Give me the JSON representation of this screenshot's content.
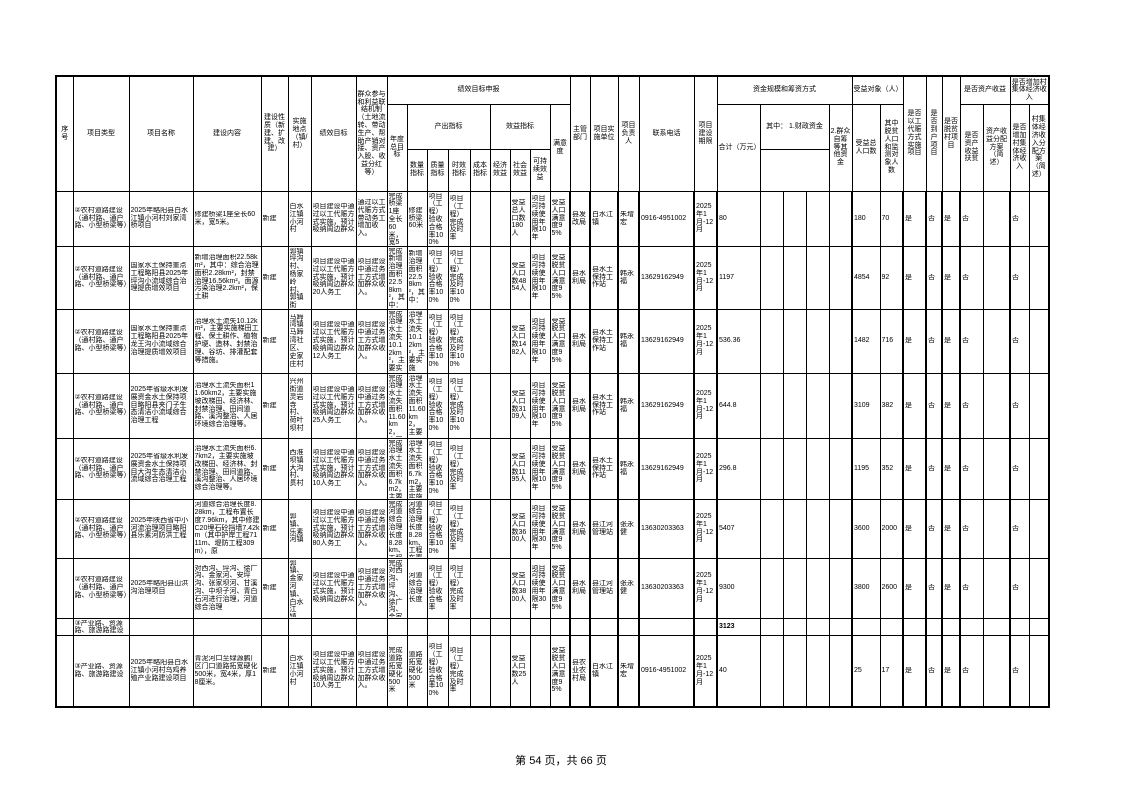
{
  "page": {
    "footer": "第 54 页，共 66 页",
    "colors": {
      "background": "#ffffff",
      "text": "#000000",
      "border": "#000000"
    }
  },
  "table": {
    "header_rows": [
      [
        {
          "t": "序号",
          "rs": 3
        },
        {
          "t": "项目类型",
          "rs": 3
        },
        {
          "t": "项目名称",
          "rs": 3
        },
        {
          "t": "建设内容",
          "rs": 3
        },
        {
          "t": "建设性质（新建、扩建、改建）",
          "rs": 3
        },
        {
          "t": "实施地点（镇/村）",
          "rs": 3
        },
        {
          "t": "绩效目标",
          "rs": 3
        },
        {
          "t": "群众参与和利益联结机制（土地流转、带动生产、帮助产销对接、资产入股、收益分红等）",
          "rs": 3
        },
        {
          "t": "绩效目标申报",
          "cs": 9
        },
        {
          "t": "主管部门",
          "rs": 3
        },
        {
          "t": "项目实施单位",
          "rs": 3
        },
        {
          "t": "项目负责人",
          "rs": 3
        },
        {
          "t": "联系电话",
          "rs": 3
        },
        {
          "t": "项目建设期限",
          "rs": 3
        },
        {
          "t": "资金规模和筹资方式",
          "cs": 5
        },
        {
          "t": "受益对象（人）",
          "cs": 2
        },
        {
          "t": "是否以工代赈方式实施项目",
          "rs": 3
        },
        {
          "t": "是否到户项目",
          "rs": 3
        },
        {
          "t": "是否脱贫村项目",
          "rs": 3
        },
        {
          "t": "是否资产收益",
          "cs": 2
        },
        {
          "t": "是否增加村集体经济收入",
          "cs": 2
        }
      ],
      [
        {
          "t": "年度总目标",
          "rs": 2
        },
        {
          "t": "产出指标",
          "cs": 4
        },
        {
          "t": "效益指标",
          "cs": 3
        },
        {
          "t": "满意度",
          "rs": 2
        },
        {
          "t": "合计（万元）",
          "rs": 2
        },
        {
          "t": "其中：    1.财政资金",
          "cs": 3
        },
        {
          "t": "2.群众自筹等其他资金",
          "rs": 2
        },
        {
          "t": "受益总人口数",
          "rs": 2
        },
        {
          "t": "其中脱贫人口和监测对象人数",
          "rs": 2
        },
        {
          "t": "是否资产收益扶贫",
          "rs": 2
        },
        {
          "t": "资产收益分配方案（简述）",
          "rs": 2
        },
        {
          "t": "是否增加村集体经济收入",
          "rs": 2
        },
        {
          "t": "村集体经济收入分配方案（简述）",
          "rs": 2
        }
      ],
      [
        {
          "t": "数量指标"
        },
        {
          "t": "质量指标"
        },
        {
          "t": "时效指标"
        },
        {
          "t": "成本指标"
        },
        {
          "t": "经济效益"
        },
        {
          "t": "社会效益"
        },
        {
          "t": "可持续效益"
        }
      ]
    ],
    "rows": [
      [
        "",
        "②农村道路建设（通村路、通户路、小型桥梁等）",
        "2025年略阳县白水江镇小河村刘家湾桥项目",
        "修建桥梁1座全长60米，宽5米。",
        "新建",
        "白水江镇小河村",
        "项目建设中通过以工代赈方式实施，预计吸纳周边群众",
        "通过以工代赈方式带动务工增加收入。",
        "完成桥梁1座全长60米，宽5米，项目建设",
        "修建桥梁60米",
        "项目（工程）验收合格率100%",
        "项目（工程）完成及时率",
        "",
        "",
        "受益总人口数180人",
        "项目可持续使用年限10年",
        "受益人口满意度95%",
        "县发改局",
        "白水江镇",
        "朱增宏",
        "0916-4951002",
        "2025年1月-12月",
        "80",
        "",
        "",
        "",
        "",
        "180",
        "70",
        "是",
        "否",
        "是",
        "否",
        "",
        "否",
        ""
      ],
      [
        "",
        "②农村道路建设（通村路、通户路、小型桥梁等）",
        "国家水土保持重点工程略阳县2025年坪沟小流域综合治理提质增效项目",
        "新增治理面积22.58km²，其中：综合治理面积2.28km²，封禁治理16.56km²。面源污染治理2.2km²，保土耕",
        "新建",
        "郭镇坪沟村、杨家岭村、郭镇街村、西沟村等4",
        "项目建设中通过以工代赈方式实施，预计吸纳周边群众20人务工",
        "项目建设中通过务工方式增加群众收入。",
        "完成新增治理面积22.58km²，其中：综合治理",
        "新增治理面积22.58km²，其中：",
        "项目（工程）验收合格率100%",
        "项目（工程）完成及时率100%",
        "",
        "",
        "受益人口数4854人",
        "项目可持续使用年限10年",
        "受益脱贫人口满意度95%",
        "县水利局",
        "县水土保持工作站",
        "韩永福",
        "13629162949",
        "2025年1月-12月",
        "1197",
        "",
        "",
        "",
        "",
        "4854",
        "92",
        "是",
        "否",
        "是",
        "否",
        "",
        "否",
        ""
      ],
      [
        "",
        "②农村道路建设（通村路、通户路、小型桥梁等）",
        "国家水土保持重点工程略阳县2025年龙王沟小流域综合治理提质增效项目",
        "治理水土流失10.12km²，主要实施梯田工程、保土耕作、植物护埂、造林、封禁治理、谷坊、排灌配套等措施。",
        "新建",
        "马蹄湾镇马蹄湾社区、史家庄村",
        "项目建设中通过以工代赈方式实施，预计吸纳周边群众12人务工",
        "项目建设中通过务工方式增加群众收入。",
        "完成治理水土流失10.12km²，主要实施梯田工程",
        "治理水土流失10.12km²，主要实施",
        "项目（工程）验收合格率100%",
        "项目（工程）完成及时率100%",
        "",
        "",
        "受益人口数1482人",
        "项目可持续使用年限10年",
        "受益脱贫人口满意度95%",
        "县水利局",
        "县水土保持工作站",
        "韩永福",
        "13629162949",
        "2025年1月-12月",
        "536.36",
        "",
        "",
        "",
        "",
        "1482",
        "716",
        "是",
        "否",
        "是",
        "否",
        "",
        "否",
        ""
      ],
      [
        "",
        "②农村道路建设（通村路、通户路、小型桥梁等）",
        "2025年省级水利发展资金水土保持项目略阳县夹门子生态清洁小流域综合治理工程",
        "治理水土流失面积11.60km2，主要实施坡改梯田、经济林、封禁治理、田间道路、溪沟整治、人居环境综合治理等。",
        "新建",
        "兴州街道灵岩寺村、荷叶坝村",
        "项目建设中通过以工代赈方式实施，预计吸纳周边群众25人务工",
        "项目建设中通过务工方式增加群众收入。",
        "完成治理水土流失面积11.60km2，主要实施",
        "治理水土流失面积11.60km2，主要",
        "项目（工程）验收合格率100%",
        "项目（工程）完成及时率100%",
        "",
        "",
        "受益人口数3109人",
        "项目可持续使用年限10年",
        "受益脱贫人口满意度95%",
        "县水利局",
        "县水土保持工作站",
        "韩永福",
        "13629162949",
        "2025年1月-12月",
        "644.8",
        "",
        "",
        "",
        "",
        "3109",
        "382",
        "是",
        "否",
        "是",
        "否",
        "",
        "否",
        ""
      ],
      [
        "",
        "②农村道路建设（通村路、通户路、小型桥梁等）",
        "2025年省级水利发展资金水土保持项目大沟生态清洁小流域综合治理工程",
        "治理水土流失面积6.7km2，主要实施坡改梯田、经济林、封禁治理、田间道路、溪沟整治、人居环境综合治理等。",
        "新建",
        "西淮坝镇大沟村、贯村",
        "项目建设中通过以工代赈方式实施，预计吸纳周边群众10人务工",
        "项目建设中通过务工方式增加群众收入。",
        "完成治理水土流失面积6.7km2，主要实施",
        "治理水土流失面积6.7km2，主要实施",
        "项目（工程）验收合格率100%",
        "项目（工程）完成及时率",
        "",
        "",
        "受益人口数1195人",
        "项目可持续使用年限10年",
        "受益脱贫人口满意度95%",
        "县水利局",
        "县水土保持工作站",
        "韩永福",
        "13629162949",
        "2025年1月-12月",
        "296.8",
        "",
        "",
        "",
        "",
        "1195",
        "352",
        "是",
        "否",
        "是",
        "否",
        "",
        "否",
        ""
      ],
      [
        "",
        "②农村道路建设（通村路、通户路、小型桥梁等）",
        "2025年陕西省中小河流治理项目略阳县乐素河防洪工程",
        "河道综合治理长度8.28km，工程布置长度7.96km，其中修建C20埋石砼挡墙7.42km（其中护岸工程7111m、堤防工程309m），原",
        "新建",
        "郭镇、乐素河镇",
        "项目建设中通过以工代赈方式实施，预计吸纳周边群众80人务工",
        "项目建设中通过务工方式增加群众收入。",
        "完成河道综合治理长度8.28km、工程布置长度",
        "河道综合治理长度8.28km、工程布置长度",
        "项目（工程）验收合格率100%",
        "项目（工程）完成及时率",
        "",
        "",
        "受益人口数3600人",
        "项目可持续使用年限30年",
        "受益脱贫人口满意度95%",
        "县水利局",
        "县江河管理站",
        "张永健",
        "13630203363",
        "2025年1月-12月",
        "5407",
        "",
        "",
        "",
        "",
        "3600",
        "2000",
        "是",
        "否",
        "是",
        "否",
        "",
        "否",
        ""
      ],
      [
        "",
        "②农村道路建设（通村路、通户路、小型桥梁等）",
        "2025年略阳县山洪沟治理项目",
        "对西沟、坪沟、徐广沟、金家河、安坪沟、张家坝河、甘溪沟、中坝子河、青白石河进行治理，河道综合治理",
        "新建",
        "郭镇、金家河镇、白水江镇、白雀寺镇",
        "项目建设中通过以工代赈方式实施，预计吸纳周边群众",
        "项目建设中通过务工方式增加群众收入。",
        "完成对西沟、坪沟、徐广沟、金家河、安",
        "河道综合治理长度",
        "项目（工程）验收合格率",
        "项目（工程）完成及时率",
        "",
        "",
        "受益人口数3800人",
        "项目可持续使用年限30年",
        "受益脱贫人口满意度95%",
        "县水利局",
        "县江河管理站",
        "张永健",
        "13630203363",
        "2025年1月-12月",
        "9300",
        "",
        "",
        "",
        "",
        "3800",
        "2600",
        "是",
        "否",
        "是",
        "否",
        "",
        "否",
        ""
      ],
      [
        "",
        "③产业路、资源路、旅游路建设",
        "",
        "",
        "",
        "",
        "",
        "",
        "",
        "",
        "",
        "",
        "",
        "",
        "",
        "",
        "",
        "",
        "",
        "",
        "",
        "",
        "3123",
        "",
        "",
        "",
        "",
        "",
        "",
        "",
        "",
        "",
        "",
        "",
        "",
        ""
      ],
      [
        "",
        "③产业路、资源路、旅游路建设",
        "2025年略阳县白水江镇小河村乌鸡养殖产业路建设项目",
        "青泥河口至绿源鹏厂区门口道路拓宽硬化500米，宽4米，厚18厘米。",
        "新建",
        "白水江镇小河村",
        "项目建设中通过以工代赈方式实施，预计吸纳周边群众10人务工",
        "项目建设中通过务工方式增加群众收入。",
        "完成道路拓宽硬化500米",
        "道路拓宽硬化500米",
        "项目（工程）验收合格率100%",
        "项目（工程）完成及时率",
        "",
        "",
        "受益人口数25人",
        "",
        "受益脱贫人口满意度95%",
        "县农业农村局",
        "白水江镇",
        "朱增宏",
        "0916-4951002",
        "2025年1月-12月",
        "40",
        "",
        "",
        "",
        "",
        "25",
        "17",
        "是",
        "否",
        "是",
        "否",
        "",
        "否",
        ""
      ]
    ]
  }
}
